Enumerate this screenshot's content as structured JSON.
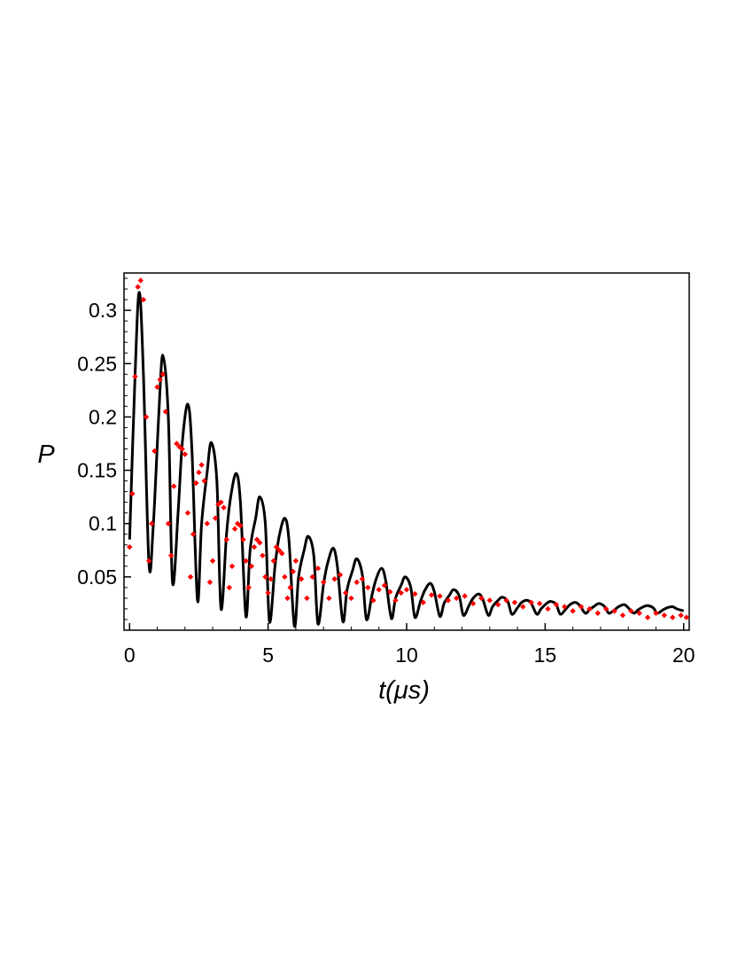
{
  "chart_data": {
    "type": "line",
    "xlabel": "t(μs)",
    "ylabel": "P",
    "xlim": [
      -0.2,
      20.2
    ],
    "ylim": [
      0.0,
      0.335
    ],
    "xticks": [
      0,
      5,
      10,
      15,
      20
    ],
    "yticks": [
      0.05,
      0.1,
      0.15,
      0.2,
      0.25,
      0.3
    ],
    "xtick_labels": [
      "0",
      "5",
      "10",
      "15",
      "20"
    ],
    "ytick_labels": [
      "0.05",
      "0.1",
      "0.15",
      "0.2",
      "0.25",
      "0.3"
    ],
    "grid": false,
    "colors": {
      "fit": "#000000",
      "data": "#ff0000"
    },
    "series": [
      {
        "style": "line",
        "x": [
          0.0,
          0.2,
          0.35,
          0.5,
          0.7,
          0.85,
          1.05,
          1.2,
          1.4,
          1.55,
          1.75,
          1.9,
          2.1,
          2.25,
          2.45,
          2.6,
          2.8,
          2.95,
          3.15,
          3.3,
          3.5,
          3.65,
          3.85,
          4.0,
          4.2,
          4.35,
          4.55,
          4.7,
          4.9,
          5.05,
          5.25,
          5.4,
          5.6,
          5.75,
          5.95,
          6.1,
          6.3,
          6.45,
          6.65,
          6.8,
          7.0,
          7.15,
          7.35,
          7.5,
          7.7,
          7.85,
          8.05,
          8.2,
          8.4,
          8.55,
          8.75,
          8.9,
          9.1,
          9.25,
          9.45,
          9.6,
          9.8,
          9.95,
          10.15,
          10.3,
          10.5,
          10.65,
          10.85,
          11.0,
          11.2,
          11.35,
          11.55,
          11.7,
          11.9,
          12.05,
          12.25,
          12.4,
          12.6,
          12.75,
          12.95,
          13.1,
          13.3,
          13.45,
          13.65,
          13.8,
          14.0,
          14.15,
          14.35,
          14.5,
          14.7,
          14.85,
          15.05,
          15.2,
          15.4,
          15.55,
          15.75,
          15.9,
          16.1,
          16.25,
          16.45,
          16.6,
          16.8,
          16.95,
          17.15,
          17.3,
          17.5,
          17.65,
          17.85,
          18.0,
          18.2,
          18.35,
          18.55,
          18.7,
          18.9,
          19.05,
          19.25,
          19.4,
          19.6,
          19.75,
          20.0
        ],
        "y": [
          0.085,
          0.24,
          0.317,
          0.24,
          0.063,
          0.095,
          0.2,
          0.258,
          0.2,
          0.045,
          0.11,
          0.175,
          0.212,
          0.17,
          0.028,
          0.1,
          0.148,
          0.176,
          0.14,
          0.02,
          0.09,
          0.125,
          0.147,
          0.12,
          0.013,
          0.075,
          0.105,
          0.125,
          0.1,
          0.008,
          0.06,
          0.088,
          0.105,
          0.085,
          0.004,
          0.05,
          0.075,
          0.088,
          0.07,
          0.006,
          0.043,
          0.063,
          0.077,
          0.06,
          0.008,
          0.038,
          0.056,
          0.067,
          0.052,
          0.01,
          0.033,
          0.048,
          0.058,
          0.046,
          0.011,
          0.03,
          0.042,
          0.05,
          0.04,
          0.012,
          0.027,
          0.037,
          0.044,
          0.036,
          0.013,
          0.025,
          0.033,
          0.038,
          0.032,
          0.014,
          0.023,
          0.03,
          0.034,
          0.029,
          0.014,
          0.022,
          0.028,
          0.031,
          0.027,
          0.015,
          0.021,
          0.026,
          0.028,
          0.025,
          0.015,
          0.02,
          0.025,
          0.027,
          0.024,
          0.015,
          0.02,
          0.024,
          0.026,
          0.023,
          0.016,
          0.019,
          0.023,
          0.025,
          0.022,
          0.016,
          0.019,
          0.022,
          0.024,
          0.021,
          0.016,
          0.019,
          0.022,
          0.023,
          0.021,
          0.016,
          0.019,
          0.021,
          0.022,
          0.02,
          0.018
        ]
      },
      {
        "style": "scatter",
        "x": [
          0.0,
          0.1,
          0.2,
          0.3,
          0.4,
          0.5,
          0.6,
          0.7,
          0.8,
          0.9,
          1.0,
          1.1,
          1.2,
          1.3,
          1.4,
          1.5,
          1.6,
          1.7,
          1.8,
          1.9,
          2.0,
          2.1,
          2.2,
          2.3,
          2.4,
          2.5,
          2.6,
          2.7,
          2.8,
          2.9,
          3.0,
          3.1,
          3.2,
          3.3,
          3.4,
          3.5,
          3.6,
          3.7,
          3.8,
          3.9,
          4.0,
          4.1,
          4.2,
          4.3,
          4.4,
          4.5,
          4.6,
          4.7,
          4.8,
          4.9,
          5.0,
          5.1,
          5.2,
          5.3,
          5.4,
          5.5,
          5.6,
          5.7,
          5.8,
          5.9,
          6.0,
          6.2,
          6.4,
          6.6,
          6.8,
          7.0,
          7.2,
          7.4,
          7.6,
          7.8,
          8.0,
          8.2,
          8.4,
          8.6,
          8.8,
          9.0,
          9.2,
          9.4,
          9.6,
          9.8,
          10.0,
          10.3,
          10.6,
          10.9,
          11.2,
          11.5,
          11.8,
          12.1,
          12.4,
          12.7,
          13.0,
          13.3,
          13.6,
          13.9,
          14.2,
          14.5,
          14.8,
          15.1,
          15.4,
          15.7,
          16.0,
          16.3,
          16.6,
          16.9,
          17.2,
          17.5,
          17.8,
          18.1,
          18.4,
          18.7,
          19.0,
          19.3,
          19.6,
          19.9,
          20.1
        ],
        "y": [
          0.078,
          0.128,
          0.238,
          0.322,
          0.328,
          0.31,
          0.2,
          0.065,
          0.1,
          0.168,
          0.228,
          0.235,
          0.24,
          0.205,
          0.1,
          0.07,
          0.135,
          0.175,
          0.172,
          0.17,
          0.165,
          0.11,
          0.05,
          0.09,
          0.138,
          0.148,
          0.155,
          0.14,
          0.1,
          0.045,
          0.065,
          0.105,
          0.118,
          0.12,
          0.115,
          0.085,
          0.04,
          0.06,
          0.095,
          0.1,
          0.098,
          0.085,
          0.065,
          0.04,
          0.06,
          0.078,
          0.085,
          0.082,
          0.07,
          0.05,
          0.035,
          0.048,
          0.065,
          0.078,
          0.075,
          0.072,
          0.05,
          0.03,
          0.04,
          0.055,
          0.065,
          0.048,
          0.03,
          0.05,
          0.058,
          0.045,
          0.03,
          0.048,
          0.052,
          0.035,
          0.03,
          0.045,
          0.048,
          0.04,
          0.028,
          0.038,
          0.042,
          0.036,
          0.028,
          0.035,
          0.038,
          0.034,
          0.026,
          0.033,
          0.032,
          0.028,
          0.03,
          0.032,
          0.025,
          0.03,
          0.028,
          0.024,
          0.028,
          0.026,
          0.022,
          0.026,
          0.025,
          0.02,
          0.024,
          0.022,
          0.018,
          0.022,
          0.02,
          0.016,
          0.02,
          0.018,
          0.014,
          0.018,
          0.016,
          0.012,
          0.016,
          0.014,
          0.012,
          0.014,
          0.012
        ]
      }
    ]
  }
}
